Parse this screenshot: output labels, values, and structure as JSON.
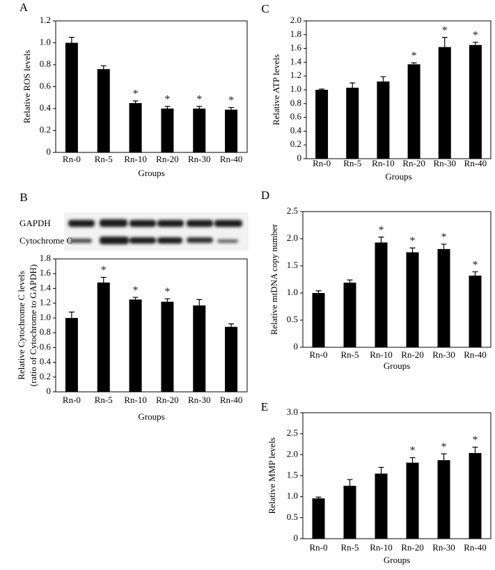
{
  "chart_data": [
    {
      "type": "bar",
      "panel": "A",
      "ylabel": "Relative ROS levels",
      "xlabel": "Groups",
      "categories": [
        "Rn-0",
        "Rn-5",
        "Rn-10",
        "Rn-20",
        "Rn-30",
        "Rn-40"
      ],
      "values": [
        1.0,
        0.76,
        0.45,
        0.4,
        0.4,
        0.39
      ],
      "errors": [
        0.05,
        0.03,
        0.02,
        0.02,
        0.02,
        0.02
      ],
      "stars": [
        null,
        null,
        "*",
        "*",
        "*",
        "*"
      ],
      "color": "#000000",
      "ylim": [
        0,
        1.2
      ],
      "yticks": [
        0,
        0.2,
        0.4,
        0.6,
        0.8,
        {
          "value": 1,
          "label": "1.0"
        },
        1.2
      ]
    },
    {
      "type": "bar",
      "panel": "C",
      "ylabel": "Relative ATP levels",
      "xlabel": "Groups",
      "categories": [
        "Rn-0",
        "Rn-5",
        "Rn-10",
        "Rn-20",
        "Rn-30",
        "Rn-40"
      ],
      "values": [
        1.0,
        1.03,
        1.12,
        1.37,
        1.62,
        1.65
      ],
      "errors": [
        0.01,
        0.07,
        0.07,
        0.02,
        0.14,
        0.04
      ],
      "stars": [
        null,
        null,
        null,
        "*",
        "*",
        "*"
      ],
      "color": "#000000",
      "ylim": [
        0,
        2
      ],
      "yticks": [
        0,
        0.2,
        0.4,
        0.6,
        0.8,
        {
          "value": 1,
          "label": "1.0"
        },
        1.2,
        1.4,
        1.6,
        1.8,
        {
          "value": 2,
          "label": "2.0"
        }
      ]
    },
    {
      "type": "bar",
      "panel": "B",
      "ylabel": [
        "Relative Cytochrome C levels",
        "(ratio of Cytochrome to GAPDH)"
      ],
      "xlabel": "Groups",
      "blot_labels": [
        "GAPDH",
        "Cytochrome C"
      ],
      "categories": [
        "Rn-0",
        "Rn-5",
        "Rn-10",
        "Rn-20",
        "Rn-30",
        "Rn-40"
      ],
      "values": [
        1.0,
        1.48,
        1.25,
        1.22,
        1.17,
        0.88
      ],
      "errors": [
        0.08,
        0.07,
        0.03,
        0.04,
        0.08,
        0.04
      ],
      "stars": [
        null,
        "*",
        "*",
        "*",
        null,
        null
      ],
      "color": "#000000",
      "ylim": [
        0,
        1.8
      ],
      "yticks": [
        0,
        0.2,
        0.4,
        0.6,
        0.8,
        {
          "value": 1,
          "label": "1.0"
        },
        1.2,
        1.4,
        1.6,
        1.8
      ]
    },
    {
      "type": "bar",
      "panel": "D",
      "ylabel": "Relative mtDNA copy number",
      "xlabel": "Groups",
      "categories": [
        "Rn-0",
        "Rn-5",
        "Rn-10",
        "Rn-20",
        "Rn-30",
        "Rn-40"
      ],
      "values": [
        1.0,
        1.19,
        1.93,
        1.75,
        1.81,
        1.32
      ],
      "errors": [
        0.04,
        0.05,
        0.1,
        0.08,
        0.09,
        0.07
      ],
      "stars": [
        null,
        null,
        "*",
        "*",
        "*",
        "*"
      ],
      "color": "#000000",
      "ylim": [
        0,
        2.5
      ],
      "yticks": [
        0,
        0.5,
        {
          "value": 1,
          "label": "1.0"
        },
        1.5,
        {
          "value": 2,
          "label": "2.0"
        },
        2.5
      ]
    },
    {
      "type": "bar",
      "panel": "E",
      "ylabel": "Relative MMP levels",
      "xlabel": "Groups",
      "categories": [
        "Rn-0",
        "Rn-5",
        "Rn-10",
        "Rn-20",
        "Rn-30",
        "Rn-40"
      ],
      "values": [
        0.96,
        1.26,
        1.55,
        1.81,
        1.87,
        2.04
      ],
      "errors": [
        0.03,
        0.15,
        0.15,
        0.12,
        0.15,
        0.14
      ],
      "stars": [
        null,
        null,
        null,
        "*",
        "*",
        "*"
      ],
      "color": "#000000",
      "ylim": [
        0,
        3
      ],
      "yticks": [
        0,
        0.5,
        {
          "value": 1,
          "label": "1.0"
        },
        1.5,
        {
          "value": 2,
          "label": "2.0"
        },
        2.5,
        {
          "value": 3,
          "label": "3.0"
        }
      ]
    }
  ]
}
